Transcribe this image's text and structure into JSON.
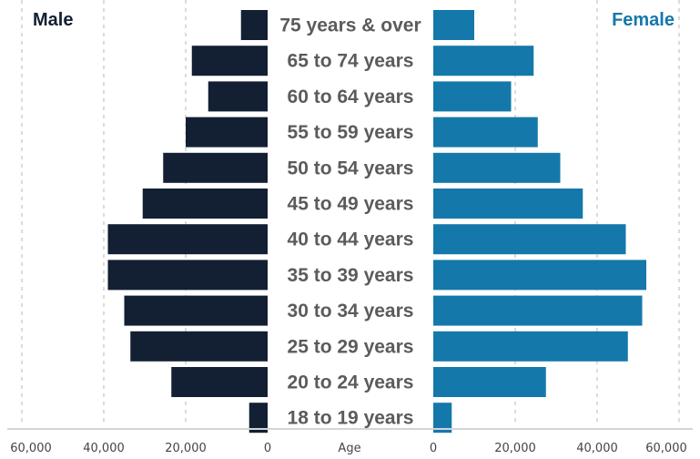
{
  "chart_data": {
    "type": "bar",
    "orientation": "horizontal-butterfly",
    "categories": [
      "75 years & over",
      "65 to 74 years",
      "60 to 64 years",
      "55 to 59 years",
      "50 to 54 years",
      "45 to 49 years",
      "40 to 44 years",
      "35 to 39 years",
      "30 to 34 years",
      "25 to 29 years",
      "20 to 24 years",
      "18 to 19 years"
    ],
    "series": [
      {
        "name": "Male",
        "color": "#131f33",
        "values": [
          6500,
          18500,
          14500,
          20000,
          25500,
          30500,
          39000,
          39000,
          35000,
          33500,
          23500,
          4500
        ]
      },
      {
        "name": "Female",
        "color": "#1478aa",
        "values": [
          10000,
          24500,
          19000,
          25500,
          31000,
          36500,
          47000,
          52000,
          51000,
          47500,
          27500,
          4500
        ]
      }
    ],
    "axis_label": "Age",
    "x_ticks": [
      "60,000",
      "40,000",
      "20,000",
      "0",
      "0",
      "20,000",
      "40,000",
      "60,000"
    ],
    "x_range": [
      0,
      60000
    ],
    "grid": true,
    "legend_placement": "top-corners"
  }
}
